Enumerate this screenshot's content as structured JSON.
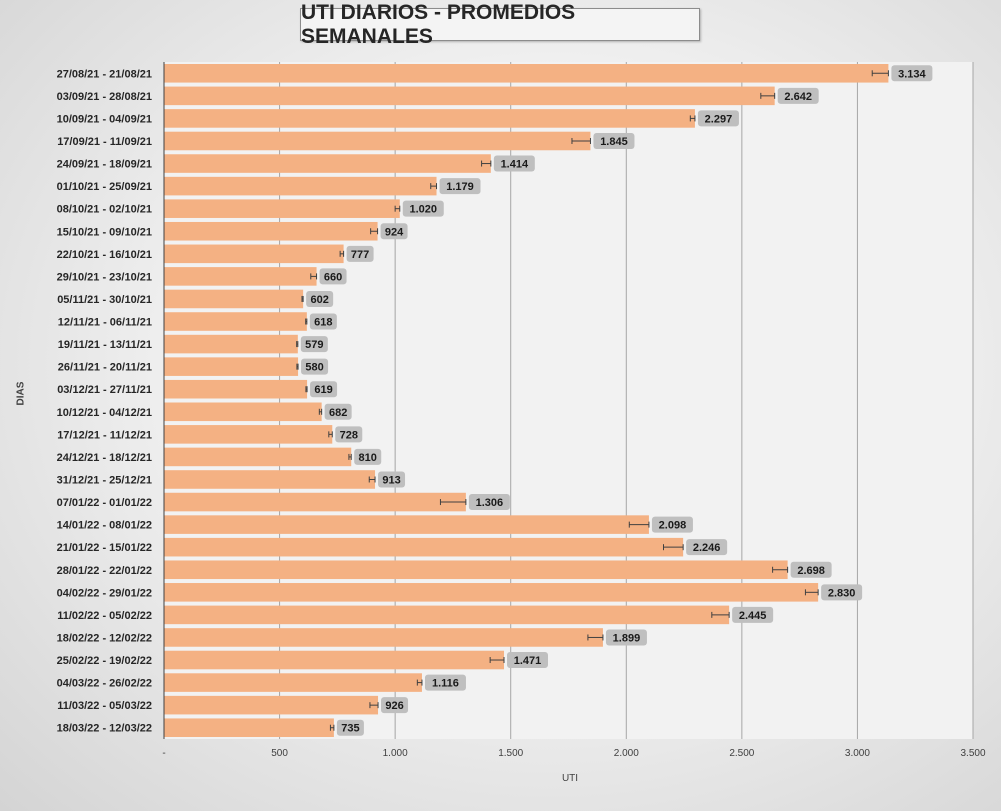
{
  "chart_data": {
    "type": "bar",
    "orientation": "horizontal",
    "title": "UTI DIARIOS - PROMEDIOS SEMANALES",
    "xlabel": "UTI",
    "ylabel": "DIAS",
    "xlim": [
      0,
      3500
    ],
    "x_ticks": [
      "-",
      "500",
      "1.000",
      "1.500",
      "2.000",
      "2.500",
      "3.000",
      "3.500"
    ],
    "grid": "vertical",
    "legend": "none",
    "bar_color": "#F4B183",
    "label_box_color": "#BFBFBF",
    "categories": [
      "27/08/21 - 21/08/21",
      "03/09/21 - 28/08/21",
      "10/09/21 - 04/09/21",
      "17/09/21 - 11/09/21",
      "24/09/21 - 18/09/21",
      "01/10/21 - 25/09/21",
      "08/10/21 - 02/10/21",
      "15/10/21 - 09/10/21",
      "22/10/21 - 16/10/21",
      "29/10/21 - 23/10/21",
      "05/11/21 - 30/10/21",
      "12/11/21 - 06/11/21",
      "19/11/21 - 13/11/21",
      "26/11/21 - 20/11/21",
      "03/12/21 - 27/11/21",
      "10/12/21 - 04/12/21",
      "17/12/21 - 11/12/21",
      "24/12/21 - 18/12/21",
      "31/12/21 - 25/12/21",
      "07/01/22 - 01/01/22",
      "14/01/22 - 08/01/22",
      "21/01/22 - 15/01/22",
      "28/01/22 - 22/01/22",
      "04/02/22 - 29/01/22",
      "11/02/22 - 05/02/22",
      "18/02/22 - 12/02/22",
      "25/02/22 - 19/02/22",
      "04/03/22 - 26/02/22",
      "11/03/22 - 05/03/22",
      "18/03/22 - 12/03/22"
    ],
    "values": [
      3134,
      2642,
      2297,
      1845,
      1414,
      1179,
      1020,
      924,
      777,
      660,
      602,
      618,
      579,
      580,
      619,
      682,
      728,
      810,
      913,
      1306,
      2098,
      2246,
      2698,
      2830,
      2445,
      1899,
      1471,
      1116,
      926,
      735
    ],
    "value_labels": [
      "3.134",
      "2.642",
      "2.297",
      "1.845",
      "1.414",
      "1.179",
      "1.020",
      "924",
      "777",
      "660",
      "602",
      "618",
      "579",
      "580",
      "619",
      "682",
      "728",
      "810",
      "913",
      "1.306",
      "2.098",
      "2.246",
      "2.698",
      "2.830",
      "2.445",
      "1.899",
      "1.471",
      "1.116",
      "926",
      "735"
    ],
    "error_bars": [
      70,
      60,
      20,
      80,
      40,
      25,
      20,
      30,
      15,
      25,
      5,
      5,
      5,
      5,
      5,
      10,
      15,
      10,
      25,
      110,
      85,
      85,
      65,
      55,
      75,
      65,
      60,
      20,
      35,
      15
    ]
  }
}
